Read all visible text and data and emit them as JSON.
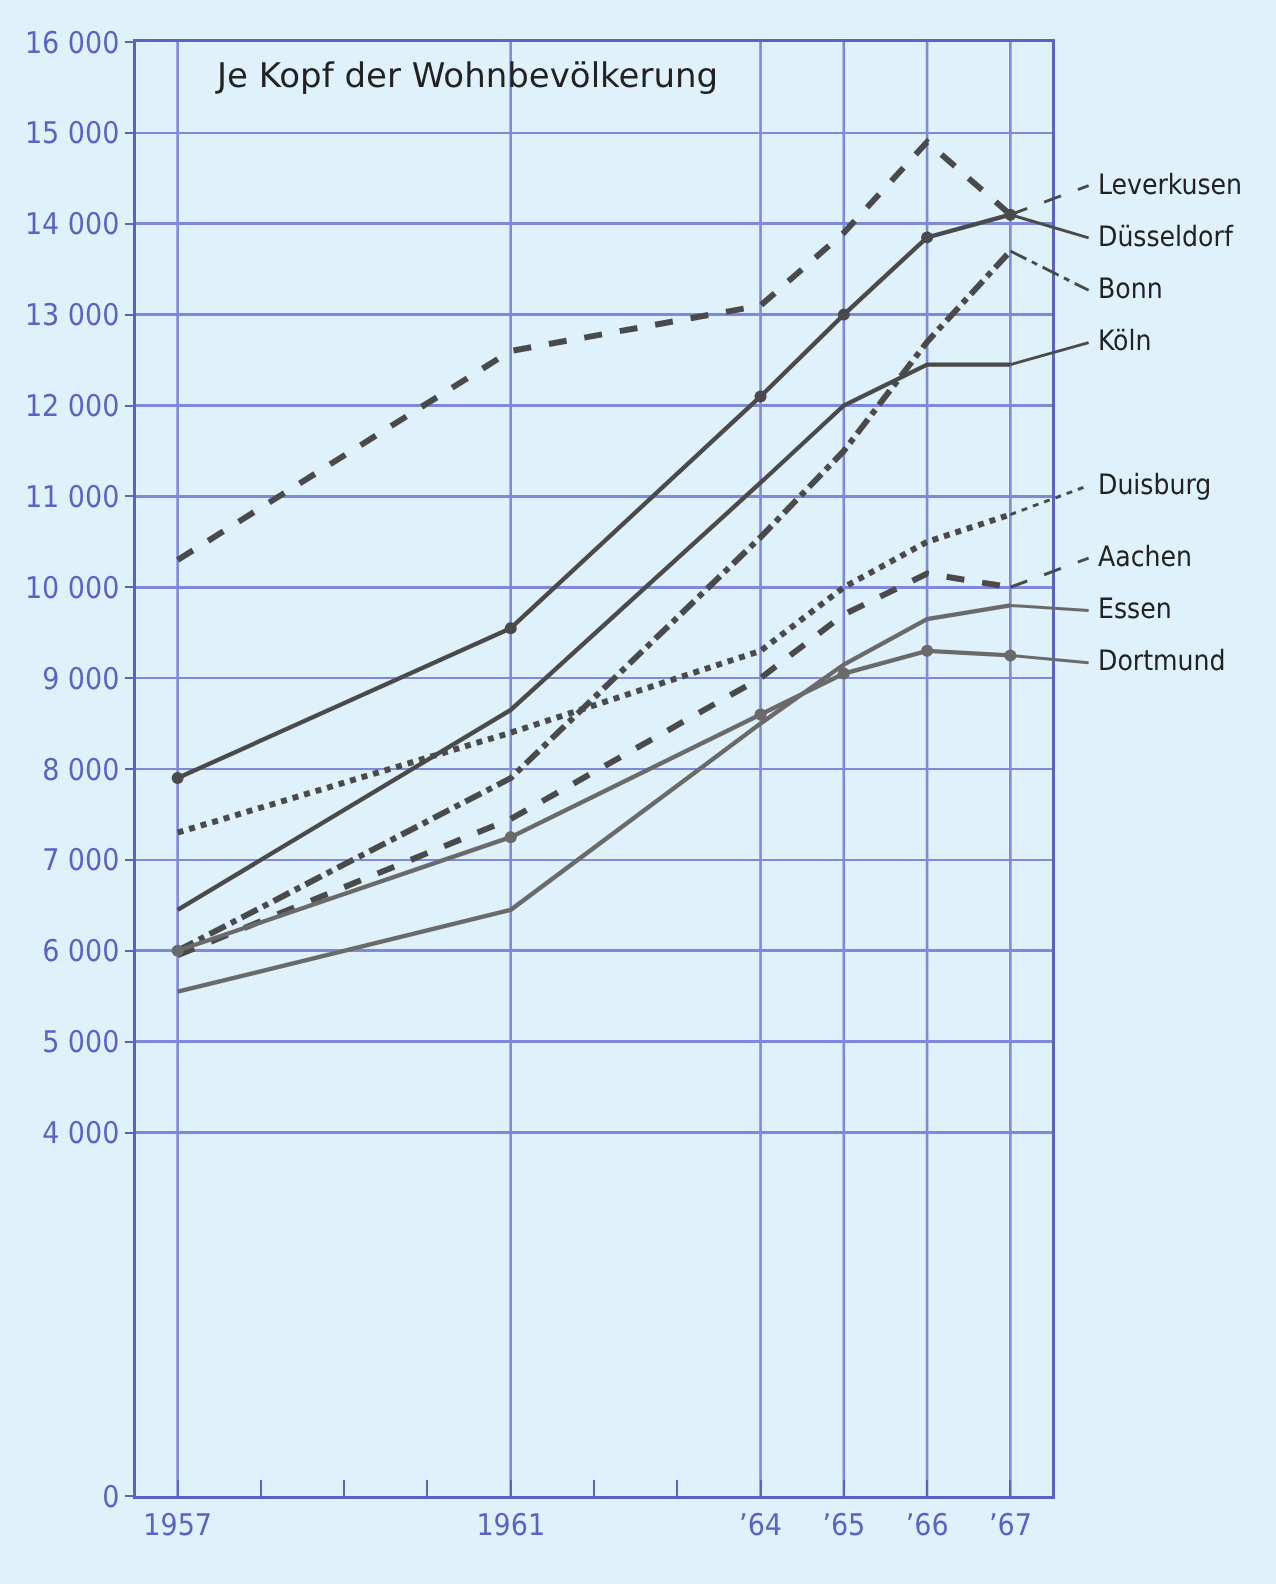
{
  "chart_data": {
    "type": "line",
    "title": "Je Kopf der Wohnbevölkerung",
    "x": [
      1957,
      1961,
      1964,
      1965,
      1966,
      1967
    ],
    "series": [
      {
        "name": "Leverkusen",
        "color": "#4a4a4a",
        "line_style": "dashed",
        "values": [
          10300,
          12600,
          13100,
          13900,
          14900,
          14100
        ]
      },
      {
        "name": "Düsseldorf",
        "color": "#4a4a4a",
        "line_style": "solid",
        "marker": "circle",
        "values": [
          7900,
          9550,
          12100,
          13000,
          13850,
          14100
        ]
      },
      {
        "name": "Bonn",
        "color": "#4a4a4a",
        "line_style": "dashdot",
        "values": [
          6000,
          7900,
          10550,
          11500,
          12700,
          13700
        ]
      },
      {
        "name": "Köln",
        "color": "#4a4a4a",
        "line_style": "solid",
        "values": [
          6450,
          8650,
          11150,
          12000,
          12450,
          12450
        ]
      },
      {
        "name": "Duisburg",
        "color": "#4a4a4a",
        "line_style": "dotted",
        "values": [
          7300,
          8400,
          9300,
          10000,
          10500,
          10800
        ]
      },
      {
        "name": "Aachen",
        "color": "#4a4a4a",
        "line_style": "dashed",
        "values": [
          5950,
          7450,
          9000,
          9700,
          10150,
          10000
        ]
      },
      {
        "name": "Essen",
        "color": "#6a6a6a",
        "line_style": "solid",
        "values": [
          5550,
          6450,
          8500,
          9150,
          9650,
          9800
        ]
      },
      {
        "name": "Dortmund",
        "color": "#6a6a6a",
        "line_style": "solid",
        "marker": "circle",
        "values": [
          6000,
          7250,
          8600,
          9050,
          9300,
          9250
        ]
      }
    ],
    "xlim": [
      1956.5,
      1967.5
    ],
    "xticks": [
      1957,
      {
        "value": 1958,
        "label": null
      },
      {
        "value": 1959,
        "label": null
      },
      {
        "value": 1960,
        "label": null
      },
      1961,
      {
        "value": 1962,
        "label": null
      },
      {
        "value": 1963,
        "label": null
      },
      {
        "value": 1964,
        "label": "’64"
      },
      {
        "value": 1965,
        "label": "’65"
      },
      {
        "value": 1966,
        "label": "’66"
      },
      {
        "value": 1967,
        "label": "’67"
      }
    ],
    "ylim": [
      0,
      16000
    ],
    "yticks": [
      0,
      {
        "value": 4000,
        "label": "4 000"
      },
      {
        "value": 5000,
        "label": "5 000"
      },
      {
        "value": 6000,
        "label": "6 000"
      },
      {
        "value": 7000,
        "label": "7 000"
      },
      {
        "value": 8000,
        "label": "8 000"
      },
      {
        "value": 9000,
        "label": "9 000"
      },
      {
        "value": 10000,
        "label": "10 000"
      },
      {
        "value": 11000,
        "label": "11 000"
      },
      {
        "value": 12000,
        "label": "12 000"
      },
      {
        "value": 13000,
        "label": "13 000"
      },
      {
        "value": 14000,
        "label": "14 000"
      },
      {
        "value": 15000,
        "label": "15 000"
      },
      {
        "value": 16000,
        "label": "16 000"
      }
    ],
    "grid": true,
    "legend": "right"
  }
}
